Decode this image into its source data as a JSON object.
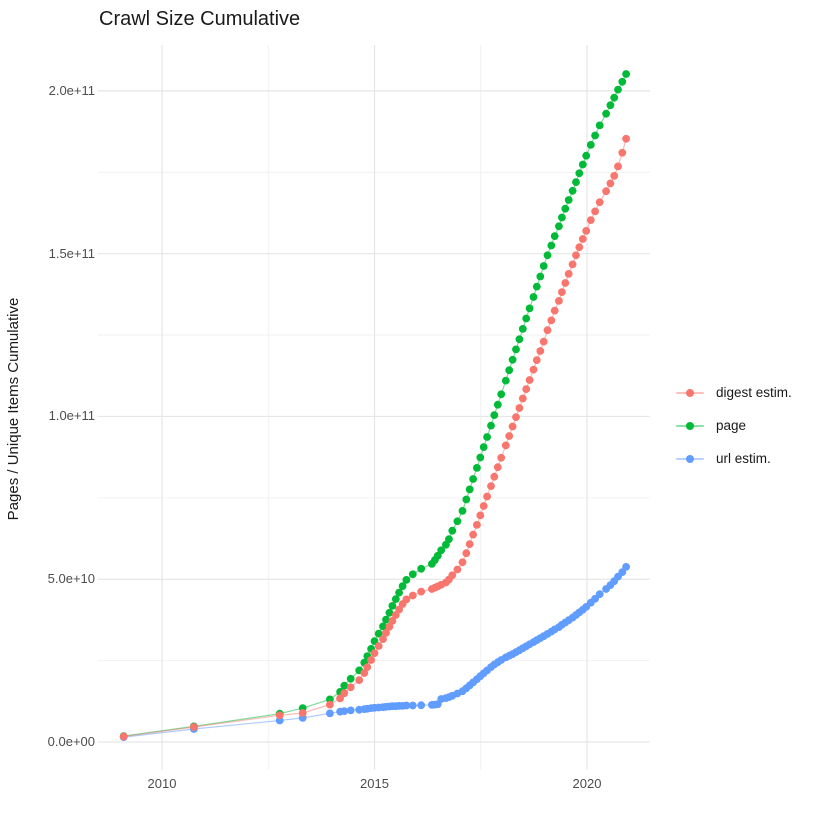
{
  "title": "Crawl Size Cumulative",
  "y_axis": {
    "title": "Pages / Unique Items Cumulative",
    "tick_labels": [
      "0.0e+00",
      "5.0e+10",
      "1.0e+11",
      "1.5e+11",
      "2.0e+11"
    ],
    "tick_values_e9": [
      0,
      50,
      100,
      150,
      200
    ],
    "minor_values_e9": [
      25,
      75,
      125,
      175
    ]
  },
  "x_axis": {
    "tick_labels": [
      "2010",
      "2015",
      "2020"
    ],
    "tick_values": [
      2010,
      2015,
      2020
    ],
    "minor_values": [
      2012.5,
      2017.5
    ]
  },
  "legend": {
    "items": [
      {
        "label": "digest estim.",
        "color": "#F8766D"
      },
      {
        "label": "page",
        "color": "#00BA38"
      },
      {
        "label": "url estim.",
        "color": "#619CFF"
      }
    ]
  },
  "style": {
    "grid_major_color": "#e6e6e6",
    "grid_minor_color": "#efefef",
    "background": "#ffffff"
  },
  "chart_data": {
    "type": "line",
    "title": "Crawl Size Cumulative",
    "xlabel": "",
    "ylabel": "Pages / Unique Items Cumulative",
    "values_unit": "1e9 items (plotted in scientific notation on axis)",
    "x_range": [
      2008.5,
      2021.67
    ],
    "y_range_e9": [
      -10,
      215.5
    ],
    "grid": true,
    "legend_position": "right",
    "marker": "point",
    "x_years": [
      2009.1,
      2010.75,
      2012.77,
      2013.31,
      2013.95,
      2014.19,
      2014.29,
      2014.44,
      2014.64,
      2014.76,
      2014.83,
      2014.92,
      2015.0,
      2015.1,
      2015.2,
      2015.27,
      2015.35,
      2015.42,
      2015.5,
      2015.58,
      2015.66,
      2015.75,
      2015.9,
      2016.1,
      2016.35,
      2016.42,
      2016.49,
      2016.57,
      2016.68,
      2016.75,
      2016.83,
      2016.95,
      2017.07,
      2017.16,
      2017.24,
      2017.32,
      2017.41,
      2017.49,
      2017.57,
      2017.65,
      2017.74,
      2017.82,
      2017.9,
      2017.98,
      2018.09,
      2018.17,
      2018.25,
      2018.33,
      2018.41,
      2018.49,
      2018.57,
      2018.65,
      2018.74,
      2018.82,
      2018.9,
      2018.98,
      2019.07,
      2019.16,
      2019.24,
      2019.34,
      2019.41,
      2019.49,
      2019.57,
      2019.66,
      2019.74,
      2019.82,
      2019.9,
      2019.98,
      2020.09,
      2020.19,
      2020.3,
      2020.45,
      2020.55,
      2020.64,
      2020.73,
      2020.83,
      2020.92
    ],
    "series": [
      {
        "name": "url estim.",
        "color": "#619CFF",
        "z": 1,
        "values_e9": [
          1.5,
          4.0,
          6.6,
          7.4,
          8.8,
          9.3,
          9.5,
          9.7,
          9.9,
          10.1,
          10.2,
          10.4,
          10.5,
          10.6,
          10.7,
          10.8,
          10.9,
          11.0,
          11.0,
          11.1,
          11.1,
          11.2,
          11.2,
          11.3,
          11.4,
          11.5,
          11.6,
          13.2,
          13.5,
          13.8,
          14.2,
          14.9,
          15.6,
          16.5,
          17.4,
          18.3,
          19.3,
          20.2,
          21.1,
          22.0,
          23.0,
          23.8,
          24.5,
          25.2,
          26.0,
          26.5,
          27.0,
          27.6,
          28.2,
          28.8,
          29.4,
          30.0,
          30.7,
          31.3,
          31.9,
          32.5,
          33.2,
          33.9,
          34.6,
          35.3,
          36.0,
          36.7,
          37.4,
          38.2,
          39.0,
          39.8,
          40.6,
          41.5,
          42.8,
          44.0,
          45.4,
          47.0,
          48.2,
          49.4,
          50.8,
          52.2,
          53.8
        ]
      },
      {
        "name": "page",
        "color": "#00BA38",
        "z": 2,
        "values_e9": [
          1.8,
          4.8,
          8.7,
          10.4,
          13.1,
          15.4,
          17.3,
          19.4,
          22.0,
          24.4,
          26.4,
          28.6,
          31.0,
          33.3,
          35.5,
          37.6,
          39.7,
          41.8,
          43.9,
          45.9,
          47.9,
          49.8,
          51.5,
          53.2,
          54.7,
          55.9,
          57.2,
          58.9,
          60.6,
          62.3,
          64.9,
          67.8,
          71.0,
          74.5,
          77.6,
          80.8,
          84.2,
          87.4,
          90.6,
          93.7,
          97.2,
          100.4,
          103.6,
          106.8,
          111.0,
          114.2,
          117.4,
          120.6,
          123.7,
          126.9,
          130.1,
          133.2,
          136.7,
          139.9,
          143.0,
          146.2,
          149.5,
          152.5,
          155.4,
          158.4,
          161.1,
          163.8,
          166.5,
          169.3,
          172.0,
          174.7,
          177.4,
          180.1,
          183.4,
          186.3,
          189.4,
          193.0,
          195.6,
          197.9,
          200.4,
          202.8,
          205.2
        ]
      },
      {
        "name": "digest estim.",
        "color": "#F8766D",
        "z": 3,
        "values_e9": [
          1.7,
          4.6,
          8.2,
          8.9,
          11.5,
          13.4,
          15.0,
          16.8,
          19.0,
          21.2,
          23.0,
          25.2,
          27.3,
          29.5,
          31.6,
          33.5,
          35.4,
          37.2,
          39.0,
          40.7,
          42.4,
          43.8,
          45.0,
          46.2,
          47.0,
          47.4,
          47.8,
          48.3,
          49.0,
          49.9,
          51.2,
          53.0,
          55.2,
          58.0,
          60.8,
          63.7,
          66.7,
          69.6,
          72.5,
          75.4,
          78.6,
          81.5,
          84.4,
          87.3,
          91.1,
          94.0,
          96.9,
          99.8,
          102.6,
          105.5,
          108.4,
          111.2,
          114.4,
          117.3,
          120.1,
          123.0,
          126.5,
          129.5,
          132.5,
          135.5,
          138.2,
          141.0,
          143.8,
          146.7,
          149.5,
          152.0,
          154.5,
          157.0,
          160.3,
          163.0,
          165.8,
          169.2,
          171.6,
          173.9,
          176.8,
          181.0,
          185.3
        ]
      }
    ]
  }
}
